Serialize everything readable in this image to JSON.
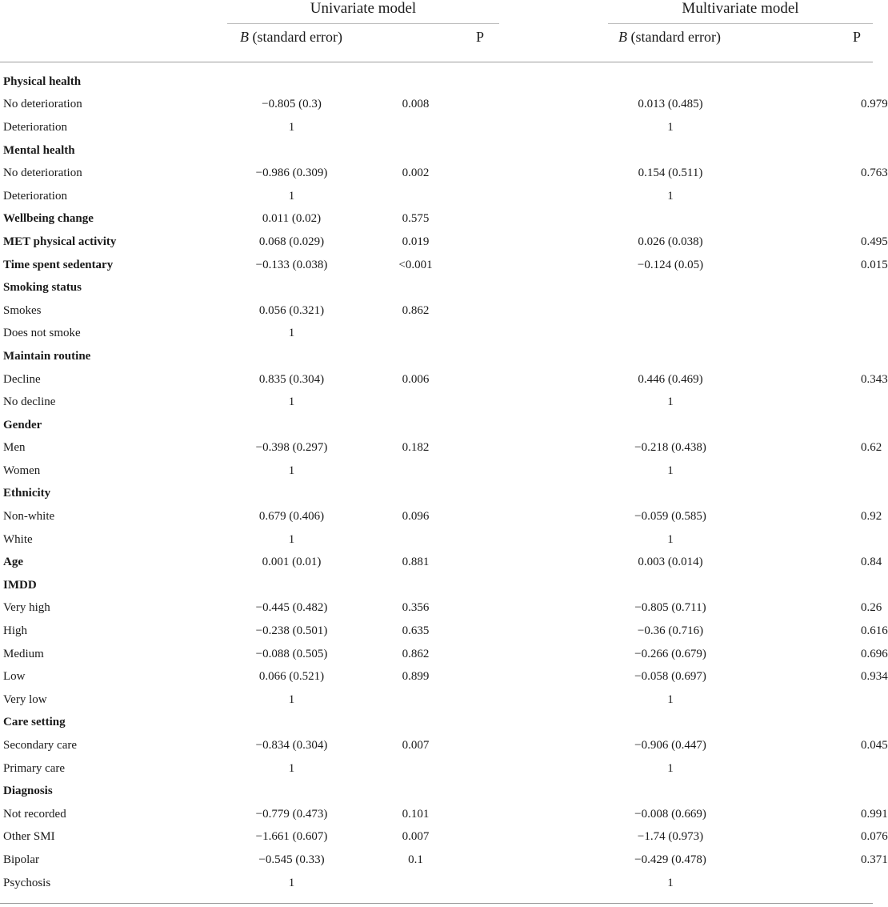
{
  "header": {
    "univariate": "Univariate model",
    "multivariate": "Multivariate model",
    "b_prefix": "B",
    "b_suffix": " (standard error)",
    "p_label": "P"
  },
  "rows": [
    {
      "label": "Physical health",
      "bold": true,
      "b1": "",
      "p1": "",
      "b2": "",
      "p2": ""
    },
    {
      "label": "No deterioration",
      "bold": false,
      "b1": "−0.805 (0.3)",
      "p1": "0.008",
      "b2": "0.013 (0.485)",
      "p2": "0.979"
    },
    {
      "label": "Deterioration",
      "bold": false,
      "b1": "1",
      "p1": "",
      "b2": "1",
      "p2": ""
    },
    {
      "label": "Mental health",
      "bold": true,
      "b1": "",
      "p1": "",
      "b2": "",
      "p2": ""
    },
    {
      "label": "No deterioration",
      "bold": false,
      "b1": "−0.986 (0.309)",
      "p1": "0.002",
      "b2": "0.154 (0.511)",
      "p2": "0.763"
    },
    {
      "label": "Deterioration",
      "bold": false,
      "b1": "1",
      "p1": "",
      "b2": "1",
      "p2": ""
    },
    {
      "label": "Wellbeing change",
      "bold": true,
      "b1": "0.011 (0.02)",
      "p1": "0.575",
      "b2": "",
      "p2": ""
    },
    {
      "label": "MET physical activity",
      "bold": true,
      "b1": "0.068 (0.029)",
      "p1": "0.019",
      "b2": "0.026 (0.038)",
      "p2": "0.495"
    },
    {
      "label": "Time spent sedentary",
      "bold": true,
      "b1": "−0.133 (0.038)",
      "p1": "<0.001",
      "b2": "−0.124 (0.05)",
      "p2": "0.015"
    },
    {
      "label": "Smoking status",
      "bold": true,
      "b1": "",
      "p1": "",
      "b2": "",
      "p2": ""
    },
    {
      "label": "Smokes",
      "bold": false,
      "b1": "0.056 (0.321)",
      "p1": "0.862",
      "b2": "",
      "p2": ""
    },
    {
      "label": "Does not smoke",
      "bold": false,
      "b1": "1",
      "p1": "",
      "b2": "",
      "p2": ""
    },
    {
      "label": "Maintain routine",
      "bold": true,
      "b1": "",
      "p1": "",
      "b2": "",
      "p2": ""
    },
    {
      "label": "Decline",
      "bold": false,
      "b1": "0.835 (0.304)",
      "p1": "0.006",
      "b2": "0.446 (0.469)",
      "p2": "0.343"
    },
    {
      "label": "No decline",
      "bold": false,
      "b1": "1",
      "p1": "",
      "b2": "1",
      "p2": ""
    },
    {
      "label": "Gender",
      "bold": true,
      "b1": "",
      "p1": "",
      "b2": "",
      "p2": ""
    },
    {
      "label": "Men",
      "bold": false,
      "b1": "−0.398 (0.297)",
      "p1": "0.182",
      "b2": "−0.218 (0.438)",
      "p2": "0.62"
    },
    {
      "label": "Women",
      "bold": false,
      "b1": "1",
      "p1": "",
      "b2": "1",
      "p2": ""
    },
    {
      "label": "Ethnicity",
      "bold": true,
      "b1": "",
      "p1": "",
      "b2": "",
      "p2": ""
    },
    {
      "label": "Non-white",
      "bold": false,
      "b1": "0.679 (0.406)",
      "p1": "0.096",
      "b2": "−0.059 (0.585)",
      "p2": "0.92"
    },
    {
      "label": "White",
      "bold": false,
      "b1": "1",
      "p1": "",
      "b2": "1",
      "p2": ""
    },
    {
      "label": "Age",
      "bold": true,
      "b1": "0.001 (0.01)",
      "p1": "0.881",
      "b2": "0.003 (0.014)",
      "p2": "0.84"
    },
    {
      "label": "IMDD",
      "bold": true,
      "b1": "",
      "p1": "",
      "b2": "",
      "p2": ""
    },
    {
      "label": "Very high",
      "bold": false,
      "b1": "−0.445 (0.482)",
      "p1": "0.356",
      "b2": "−0.805 (0.711)",
      "p2": "0.26"
    },
    {
      "label": "High",
      "bold": false,
      "b1": "−0.238 (0.501)",
      "p1": "0.635",
      "b2": "−0.36 (0.716)",
      "p2": "0.616"
    },
    {
      "label": "Medium",
      "bold": false,
      "b1": "−0.088 (0.505)",
      "p1": "0.862",
      "b2": "−0.266 (0.679)",
      "p2": "0.696"
    },
    {
      "label": "Low",
      "bold": false,
      "b1": "0.066 (0.521)",
      "p1": "0.899",
      "b2": "−0.058 (0.697)",
      "p2": "0.934"
    },
    {
      "label": "Very low",
      "bold": false,
      "b1": "1",
      "p1": "",
      "b2": "1",
      "p2": ""
    },
    {
      "label": "Care setting",
      "bold": true,
      "b1": "",
      "p1": "",
      "b2": "",
      "p2": ""
    },
    {
      "label": "Secondary care",
      "bold": false,
      "b1": "−0.834 (0.304)",
      "p1": "0.007",
      "b2": "−0.906 (0.447)",
      "p2": "0.045"
    },
    {
      "label": "Primary care",
      "bold": false,
      "b1": "1",
      "p1": "",
      "b2": "1",
      "p2": ""
    },
    {
      "label": "Diagnosis",
      "bold": true,
      "b1": "",
      "p1": "",
      "b2": "",
      "p2": ""
    },
    {
      "label": "Not recorded",
      "bold": false,
      "b1": "−0.779 (0.473)",
      "p1": "0.101",
      "b2": "−0.008 (0.669)",
      "p2": "0.991"
    },
    {
      "label": "Other SMI",
      "bold": false,
      "b1": "−1.661 (0.607)",
      "p1": "0.007",
      "b2": "−1.74 (0.973)",
      "p2": "0.076"
    },
    {
      "label": "Bipolar",
      "bold": false,
      "b1": "−0.545 (0.33)",
      "p1": "0.1",
      "b2": "−0.429 (0.478)",
      "p2": "0.371"
    },
    {
      "label": "Psychosis",
      "bold": false,
      "b1": "1",
      "p1": "",
      "b2": "1",
      "p2": ""
    }
  ]
}
